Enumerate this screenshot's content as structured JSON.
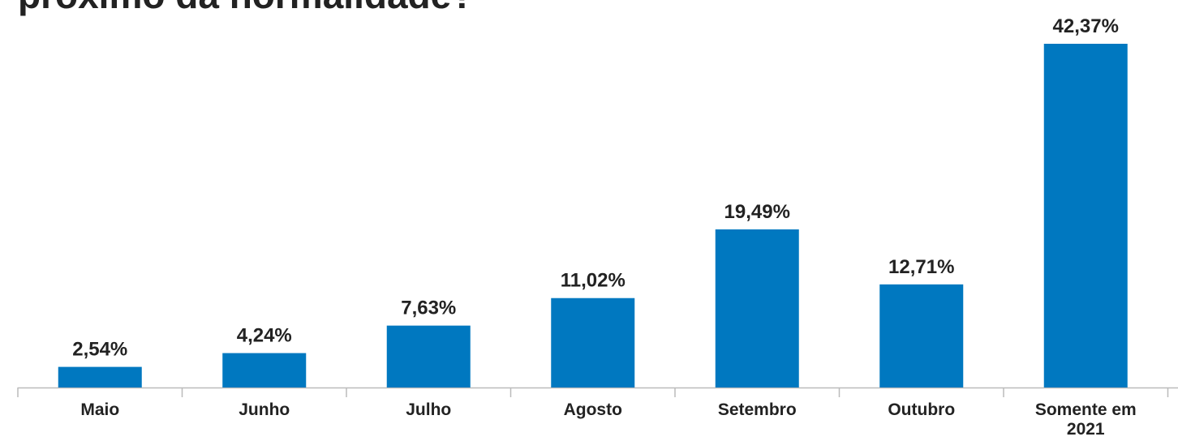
{
  "chart_data": {
    "type": "bar",
    "title": "próximo da normalidade?",
    "categories": [
      "Maio",
      "Junho",
      "Julho",
      "Agosto",
      "Setembro",
      "Outubro",
      "Somente em 2021"
    ],
    "values": [
      2.54,
      4.24,
      7.63,
      11.02,
      19.49,
      12.71,
      42.37
    ],
    "value_labels": [
      "2,54%",
      "4,24%",
      "7,63%",
      "11,02%",
      "19,49%",
      "12,71%",
      "42,37%"
    ],
    "color": "#0078c0"
  }
}
